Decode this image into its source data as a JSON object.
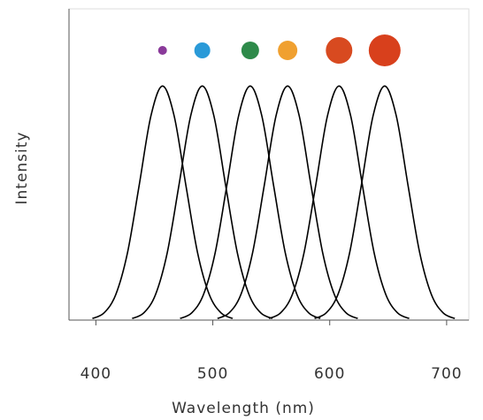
{
  "chart_data": {
    "type": "line",
    "xlabel": "Wavelength (nm)",
    "ylabel": "Intensity",
    "xlim": [
      377,
      719
    ],
    "xticks": [
      400,
      500,
      600,
      700
    ],
    "ylim": [
      0,
      1.33
    ],
    "series": [
      {
        "color": "#000000",
        "dot_color": "#8a3a9a",
        "x": [
          397,
          407,
          417,
          427,
          437,
          447,
          457,
          467,
          477,
          487,
          497,
          507,
          517
        ],
        "values": [
          0.0068,
          0.031,
          0.109,
          0.287,
          0.575,
          0.871,
          1,
          0.871,
          0.575,
          0.287,
          0.109,
          0.031,
          0.0068
        ]
      },
      {
        "color": "#000000",
        "dot_color": "#2a9ad8",
        "x": [
          431,
          441,
          451,
          461,
          471,
          481,
          491,
          501,
          511,
          521,
          531,
          541,
          551
        ],
        "values": [
          0.0068,
          0.031,
          0.109,
          0.287,
          0.575,
          0.871,
          1,
          0.871,
          0.575,
          0.287,
          0.109,
          0.031,
          0.0068
        ]
      },
      {
        "color": "#000000",
        "dot_color": "#2e8a4a",
        "x": [
          472,
          482,
          492,
          502,
          512,
          522,
          532,
          542,
          552,
          562,
          572,
          582,
          592
        ],
        "values": [
          0.0068,
          0.031,
          0.109,
          0.287,
          0.575,
          0.871,
          1,
          0.871,
          0.575,
          0.287,
          0.109,
          0.031,
          0.0068
        ]
      },
      {
        "color": "#000000",
        "dot_color": "#f0a030",
        "x": [
          504,
          514,
          524,
          534,
          544,
          554,
          564,
          574,
          584,
          594,
          604,
          614,
          624
        ],
        "values": [
          0.0068,
          0.031,
          0.109,
          0.287,
          0.575,
          0.871,
          1,
          0.871,
          0.575,
          0.287,
          0.109,
          0.031,
          0.0068
        ]
      },
      {
        "color": "#000000",
        "dot_color": "#d84a20",
        "x": [
          548,
          558,
          568,
          578,
          588,
          598,
          608,
          618,
          628,
          638,
          648,
          658,
          668
        ],
        "values": [
          0.0068,
          0.031,
          0.109,
          0.287,
          0.575,
          0.871,
          1,
          0.871,
          0.575,
          0.287,
          0.109,
          0.031,
          0.0068
        ]
      },
      {
        "color": "#000000",
        "dot_color": "#d8401c",
        "x": [
          587,
          597,
          607,
          617,
          627,
          637,
          647,
          657,
          667,
          677,
          687,
          697,
          707
        ],
        "values": [
          0.0068,
          0.031,
          0.109,
          0.287,
          0.575,
          0.871,
          1,
          0.871,
          0.575,
          0.287,
          0.109,
          0.031,
          0.0068
        ]
      }
    ]
  }
}
